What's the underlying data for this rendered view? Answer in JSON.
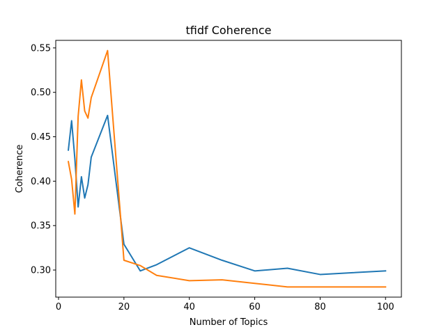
{
  "chart_data": {
    "type": "line",
    "title": "tfidf Coherence",
    "xlabel": "Number of Topics",
    "ylabel": "Coherence",
    "xlim": [
      -0.85,
      104.85
    ],
    "ylim": [
      0.2695,
      0.5585
    ],
    "xticks": [
      0,
      20,
      40,
      60,
      80,
      100
    ],
    "yticks": [
      0.3,
      0.35,
      0.4,
      0.45,
      0.5,
      0.55
    ],
    "xtick_labels": [
      "0",
      "20",
      "40",
      "60",
      "80",
      "100"
    ],
    "ytick_labels": [
      "0.30",
      "0.35",
      "0.40",
      "0.45",
      "0.50",
      "0.55"
    ],
    "grid": false,
    "series": [
      {
        "color": "#1f77b4",
        "x": [
          3,
          4,
          5,
          6,
          7,
          8,
          9,
          10,
          15,
          20,
          25,
          30,
          40,
          50,
          60,
          70,
          80,
          90,
          100
        ],
        "y": [
          0.435,
          0.468,
          0.425,
          0.371,
          0.405,
          0.381,
          0.396,
          0.427,
          0.474,
          0.329,
          0.299,
          0.306,
          0.325,
          0.311,
          0.299,
          0.302,
          0.295,
          0.297,
          0.299
        ]
      },
      {
        "color": "#ff7f0e",
        "x": [
          3,
          4,
          5,
          6,
          7,
          8,
          9,
          10,
          15,
          20,
          25,
          30,
          40,
          50,
          60,
          70,
          80,
          90,
          100
        ],
        "y": [
          0.422,
          0.402,
          0.363,
          0.473,
          0.514,
          0.479,
          0.471,
          0.494,
          0.547,
          0.311,
          0.305,
          0.294,
          0.288,
          0.289,
          0.285,
          0.281,
          0.281,
          0.281,
          0.281
        ]
      }
    ]
  }
}
